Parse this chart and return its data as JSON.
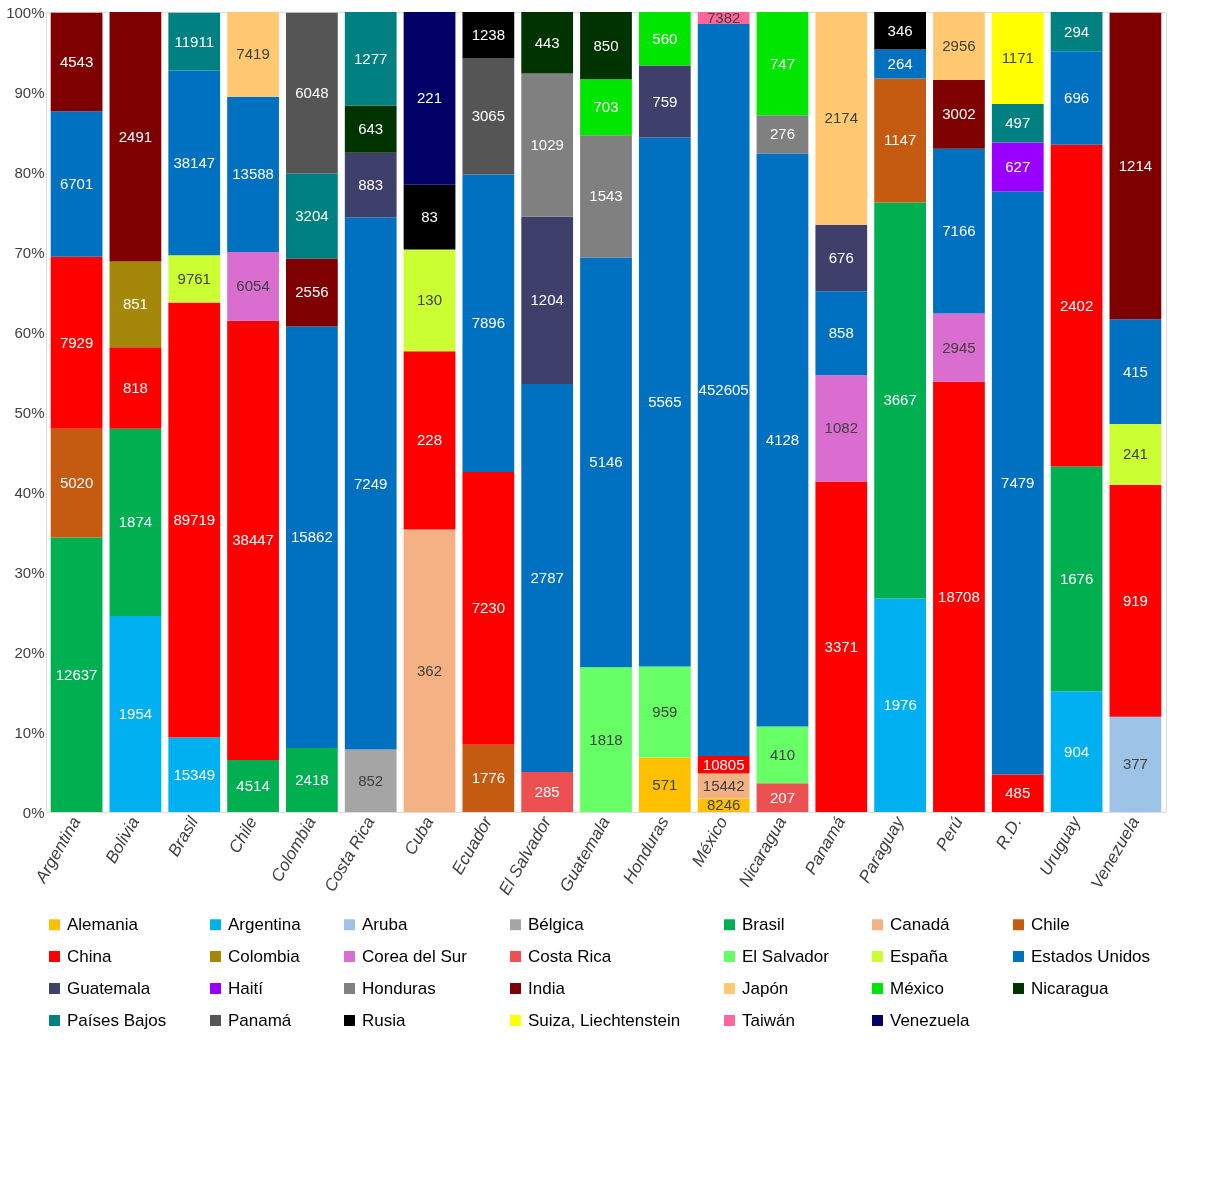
{
  "chart_data": {
    "type": "bar",
    "stacked": true,
    "legend": "bottom",
    "grid": false,
    "categories": [
      "Argentina",
      "Bolivia",
      "Brasil",
      "Chile",
      "Colombia",
      "Costa Rica",
      "Cuba",
      "Ecuador",
      "El Salvador",
      "Guatemala",
      "Honduras",
      "México",
      "Nicaragua",
      "Panamá",
      "Paraguay",
      "Perú",
      "R.D.",
      "Uruguay",
      "Venezuela"
    ],
    "ylim": [
      0,
      100
    ],
    "yticks": [
      {
        "value": 0,
        "label": "0%"
      },
      {
        "value": 10,
        "label": "10%"
      },
      {
        "value": 20,
        "label": "20%"
      },
      {
        "value": 30,
        "label": "30%"
      },
      {
        "value": 40,
        "label": "40%"
      },
      {
        "value": 50,
        "label": "50%"
      },
      {
        "value": 60,
        "label": "60%"
      },
      {
        "value": 70,
        "label": "70%"
      },
      {
        "value": 80,
        "label": "80%"
      },
      {
        "value": 90,
        "label": "90%"
      },
      {
        "value": 100,
        "label": "100%"
      }
    ],
    "series": [
      {
        "name": "Alemania",
        "color": "#ffc000",
        "values": [
          null,
          null,
          null,
          null,
          null,
          null,
          null,
          null,
          null,
          null,
          6.8,
          1.7,
          null,
          null,
          null,
          null,
          null,
          null,
          null
        ]
      },
      {
        "name": "Argentina",
        "color": "#00b0f0",
        "values": [
          null,
          24.5,
          9.3,
          null,
          null,
          null,
          null,
          null,
          null,
          null,
          null,
          null,
          null,
          null,
          26.7,
          null,
          null,
          15.1,
          null
        ]
      },
      {
        "name": "Aruba",
        "color": "#9dc3e6",
        "values": [
          null,
          null,
          null,
          null,
          null,
          null,
          null,
          null,
          null,
          null,
          null,
          null,
          null,
          null,
          null,
          null,
          null,
          null,
          11.9
        ]
      },
      {
        "name": "Bélgica",
        "color": "#a5a5a5",
        "values": [
          null,
          null,
          null,
          null,
          null,
          7.8,
          null,
          null,
          null,
          null,
          null,
          null,
          null,
          null,
          null,
          null,
          null,
          null,
          null
        ]
      },
      {
        "name": "Brasil",
        "color": "#00b050",
        "values": [
          34.3,
          23.4,
          null,
          6.5,
          8.0,
          null,
          null,
          null,
          null,
          null,
          null,
          null,
          null,
          null,
          49.5,
          null,
          null,
          28.1,
          null
        ]
      },
      {
        "name": "Canadá",
        "color": "#f4b183",
        "values": [
          null,
          null,
          null,
          null,
          null,
          null,
          35.3,
          null,
          null,
          null,
          null,
          3.1,
          null,
          null,
          null,
          null,
          null,
          null,
          null
        ]
      },
      {
        "name": "Chile",
        "color": "#c55a11",
        "values": [
          13.6,
          null,
          null,
          null,
          null,
          null,
          null,
          8.4,
          null,
          null,
          null,
          null,
          null,
          null,
          15.5,
          null,
          null,
          null,
          null
        ]
      },
      {
        "name": "China",
        "color": "#ff0000",
        "values": [
          21.5,
          10.2,
          54.4,
          54.9,
          null,
          null,
          22.3,
          34.1,
          null,
          null,
          null,
          2.2,
          null,
          41.3,
          null,
          53.8,
          4.7,
          40.2,
          29.0
        ]
      },
      {
        "name": "Colombia",
        "color": "#a5870a",
        "values": [
          null,
          10.7,
          null,
          null,
          null,
          null,
          null,
          null,
          null,
          null,
          null,
          null,
          null,
          null,
          null,
          null,
          null,
          null,
          null
        ]
      },
      {
        "name": "Corea del Sur",
        "color": "#d96ed0",
        "values": [
          null,
          null,
          null,
          8.6,
          null,
          null,
          null,
          null,
          null,
          null,
          null,
          null,
          null,
          13.3,
          null,
          8.5,
          null,
          null,
          null
        ]
      },
      {
        "name": "Costa Rica",
        "color": "#ec5050",
        "values": [
          null,
          null,
          null,
          null,
          null,
          null,
          null,
          null,
          5.0,
          null,
          null,
          null,
          3.6,
          null,
          null,
          null,
          null,
          null,
          null
        ]
      },
      {
        "name": "El Salvador",
        "color": "#66ff66",
        "values": [
          null,
          null,
          null,
          null,
          null,
          null,
          null,
          null,
          null,
          18.1,
          11.4,
          null,
          7.1,
          null,
          null,
          null,
          null,
          null,
          null
        ]
      },
      {
        "name": "España",
        "color": "#ccff33",
        "values": [
          null,
          null,
          5.9,
          null,
          null,
          null,
          12.7,
          null,
          null,
          null,
          null,
          null,
          null,
          null,
          null,
          null,
          null,
          null,
          7.6
        ]
      },
      {
        "name": "Estados Unidos",
        "color": "#0070c0",
        "values": [
          18.2,
          null,
          23.1,
          19.4,
          52.7,
          66.5,
          null,
          37.2,
          48.5,
          51.2,
          66.1,
          91.5,
          71.6,
          10.5,
          3.6,
          20.6,
          72.9,
          11.7,
          13.1
        ]
      },
      {
        "name": "Guatemala",
        "color": "#3f3f6b",
        "values": [
          null,
          null,
          null,
          null,
          null,
          8.1,
          null,
          null,
          20.9,
          null,
          9.0,
          null,
          null,
          8.3,
          null,
          null,
          null,
          null,
          null
        ]
      },
      {
        "name": "Haití",
        "color": "#9900ff",
        "values": [
          null,
          null,
          null,
          null,
          null,
          null,
          null,
          null,
          null,
          null,
          null,
          null,
          null,
          null,
          null,
          null,
          6.1,
          null,
          null
        ]
      },
      {
        "name": "Honduras",
        "color": "#808080",
        "values": [
          null,
          null,
          null,
          null,
          null,
          null,
          null,
          null,
          17.9,
          15.3,
          null,
          null,
          4.8,
          null,
          null,
          null,
          null,
          null,
          null
        ]
      },
      {
        "name": "India",
        "color": "#7f0000",
        "values": [
          12.3,
          31.2,
          null,
          null,
          8.5,
          null,
          null,
          null,
          null,
          null,
          null,
          null,
          null,
          null,
          null,
          8.6,
          null,
          null,
          38.3
        ]
      },
      {
        "name": "Japón",
        "color": "#ffc871",
        "values": [
          null,
          null,
          null,
          10.6,
          null,
          null,
          null,
          null,
          null,
          null,
          null,
          null,
          null,
          26.6,
          null,
          8.5,
          null,
          null,
          null
        ]
      },
      {
        "name": "México",
        "color": "#00e600",
        "values": [
          null,
          null,
          null,
          null,
          null,
          null,
          null,
          null,
          null,
          7.0,
          6.7,
          null,
          12.9,
          null,
          null,
          null,
          null,
          null,
          null
        ]
      },
      {
        "name": "Nicaragua",
        "color": "#003300",
        "values": [
          null,
          null,
          null,
          null,
          null,
          5.9,
          null,
          null,
          7.7,
          8.4,
          null,
          null,
          null,
          null,
          null,
          null,
          null,
          null,
          null
        ]
      },
      {
        "name": "Países Bajos",
        "color": "#008080",
        "values": [
          null,
          null,
          7.2,
          null,
          10.6,
          11.7,
          null,
          null,
          null,
          null,
          null,
          null,
          null,
          null,
          null,
          null,
          4.8,
          4.9,
          null
        ]
      },
      {
        "name": "Panamá",
        "color": "#555555",
        "values": [
          null,
          null,
          null,
          null,
          20.1,
          null,
          null,
          14.5,
          null,
          null,
          null,
          null,
          null,
          null,
          null,
          null,
          null,
          null,
          null
        ]
      },
      {
        "name": "Rusia",
        "color": "#000000",
        "values": [
          null,
          null,
          null,
          null,
          null,
          null,
          8.1,
          5.8,
          null,
          null,
          null,
          null,
          null,
          null,
          4.7,
          null,
          null,
          null,
          null
        ]
      },
      {
        "name": "Suiza, Liechtenstein",
        "color": "#ffff00",
        "values": [
          null,
          null,
          null,
          null,
          null,
          null,
          null,
          null,
          null,
          null,
          null,
          null,
          null,
          null,
          null,
          null,
          11.4,
          null,
          null
        ]
      },
      {
        "name": "Taiwán",
        "color": "#ff6699",
        "values": [
          null,
          null,
          null,
          null,
          null,
          null,
          null,
          null,
          null,
          null,
          null,
          1.5,
          null,
          null,
          null,
          null,
          null,
          null,
          null
        ]
      },
      {
        "name": "Venezuela",
        "color": "#000066",
        "values": [
          null,
          null,
          null,
          null,
          null,
          null,
          21.6,
          null,
          null,
          null,
          null,
          null,
          null,
          null,
          null,
          null,
          null,
          null,
          null
        ]
      }
    ],
    "annotations": [
      "12637",
      "5020",
      "7929",
      "6701",
      "4543",
      "1954",
      "1874",
      "818",
      "851",
      "2491",
      "15349",
      "89719",
      "9761",
      "38147",
      "11911",
      "4514",
      "38447",
      "6054",
      "13588",
      "7419",
      "2418",
      "15862",
      "2556",
      "3204",
      "6048",
      "852",
      "7249",
      "883",
      "643",
      "1277",
      "362",
      "228",
      "130",
      "83",
      "221",
      "1776",
      "7230",
      "7896",
      "3065",
      "1238",
      "285",
      "2787",
      "1204",
      "1029",
      "443",
      "1818",
      "5146",
      "1543",
      "703",
      "850",
      "571",
      "959",
      "5565",
      "759",
      "560",
      "8246",
      "15442",
      "10805",
      "452605",
      "7382",
      "207",
      "410",
      "4128",
      "276",
      "747",
      "3371",
      "1082",
      "858",
      "676",
      "2174",
      "1976",
      "3667",
      "1147",
      "264",
      "346",
      "18708",
      "2945",
      "7166",
      "3002",
      "2956",
      "485",
      "7479",
      "627",
      "497",
      "1171",
      "904",
      "1676",
      "2402",
      "696",
      "294",
      "377",
      "919",
      "241",
      "415",
      "1214"
    ]
  }
}
